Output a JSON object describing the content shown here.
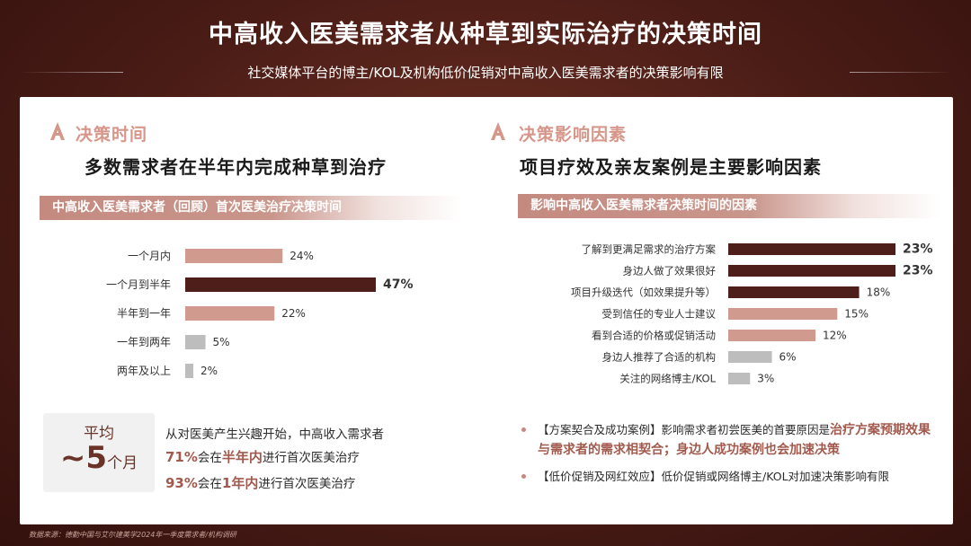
{
  "header": {
    "title": "中高收入医美需求者从种草到实际治疗的决策时间",
    "subtitle": "社交媒体平台的博主/KOL及机构低价促销对中高收入医美需求者的决策影响有限"
  },
  "left": {
    "section_title": "决策时间",
    "headline": "多数需求者在半年内完成种草到治疗",
    "banner": "中高收入医美需求者（回顾）首次医美治疗决策时间",
    "average": {
      "label": "平均",
      "value": "~5",
      "unit": "个月"
    },
    "summary": {
      "line1": "从对医美产生兴趣开始，中高收入需求者",
      "line2_pct": "71%",
      "line2_a": "会在",
      "line2_em": "半年内",
      "line2_b": "进行首次医美治疗",
      "line3_pct": "93%",
      "line3_a": "会在",
      "line3_em": "1年内",
      "line3_b": "进行首次医美治疗"
    }
  },
  "right": {
    "section_title": "决策影响因素",
    "headline": "项目疗效及亲友案例是主要影响因素",
    "banner": "影响中高收入医美需求者决策时间的因素",
    "bullets": [
      {
        "tag": "【方案契合及成功案例】",
        "text": "影响需求者初尝医美的首要原因是",
        "highlight": "治疗方案预期效果与需求者的需求相契合；身边人成功案例也会加速决策"
      },
      {
        "tag": "【低价促销及网红效应】",
        "text": "低价促销或网络博主/KOL对加速决策影响有限",
        "highlight": ""
      }
    ]
  },
  "source_note": "数据来源：德勤中国与艾尔建美学2024年一季度需求者/机构调研",
  "colors": {
    "dark_bar": "#4e1e1a",
    "mid_bar": "#d09a8e",
    "light_bar": "#bdbdbd",
    "accent": "#a25a4e"
  },
  "chart_data": [
    {
      "type": "bar",
      "orientation": "horizontal",
      "title": "中高收入医美需求者（回顾）首次医美治疗决策时间",
      "categories": [
        "一个月内",
        "一个月到半年",
        "半年到一年",
        "一年到两年",
        "两年及以上"
      ],
      "values": [
        24,
        47,
        22,
        5,
        2
      ],
      "value_labels": [
        "24%",
        "47%",
        "22%",
        "5%",
        "2%"
      ],
      "bar_tones": [
        "mid",
        "dark",
        "mid",
        "light",
        "light"
      ],
      "unit": "%",
      "xlim": [
        0,
        47
      ]
    },
    {
      "type": "bar",
      "orientation": "horizontal",
      "title": "影响中高收入医美需求者决策时间的因素",
      "categories": [
        "了解到更满足需求的治疗方案",
        "身边人做了效果很好",
        "项目升级迭代（如效果提升等）",
        "受到信任的专业人士建议",
        "看到合适的价格或促销活动",
        "身边人推荐了合适的机构",
        "关注的网络博主/KOL"
      ],
      "values": [
        23,
        23,
        18,
        15,
        12,
        6,
        3
      ],
      "value_labels": [
        "23%",
        "23%",
        "18%",
        "15%",
        "12%",
        "6%",
        "3%"
      ],
      "bar_tones": [
        "dark",
        "dark",
        "dark",
        "mid",
        "mid",
        "light",
        "light"
      ],
      "unit": "%",
      "xlim": [
        0,
        23
      ]
    }
  ]
}
